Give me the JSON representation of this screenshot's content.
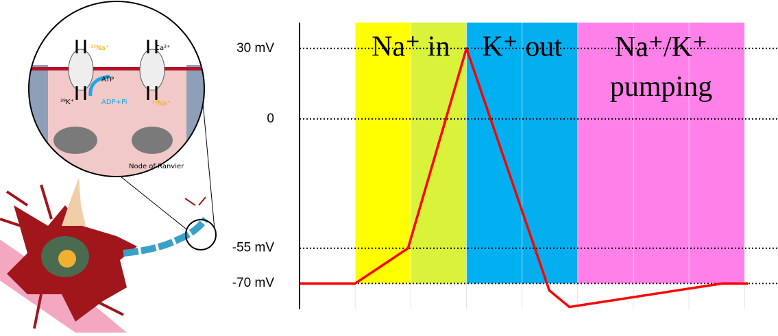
{
  "chart_data": {
    "type": "line",
    "x": [
      0,
      1,
      1.95,
      3,
      4.49,
      4.85,
      7.6,
      8.06
    ],
    "values": [
      -70,
      -70,
      -55,
      30,
      -73,
      -80,
      -70,
      -70
    ],
    "color": "#ff0000",
    "xlim": [
      0,
      8.6
    ],
    "ylim": [
      -81,
      41
    ],
    "xticks": [
      1,
      2,
      3,
      4,
      5,
      6,
      7,
      8
    ],
    "yticks": [
      {
        "value": 30,
        "label": "30 mV"
      },
      0,
      {
        "value": -55,
        "label": "-55 mV"
      },
      {
        "value": -70,
        "label": "-70 mV"
      }
    ],
    "grid": true,
    "fills": [
      {
        "from": 1,
        "to": 2,
        "color": "#ffff00"
      },
      {
        "from": 2,
        "to": 3,
        "color": "#d9f23a"
      },
      {
        "from": 3,
        "to": 4,
        "color": "#00b0f0"
      },
      {
        "from": 4,
        "to": 5,
        "color": "#05aeee"
      },
      {
        "from": 5,
        "to": 8,
        "color": "#ff80e8"
      }
    ],
    "phases": [
      {
        "label": "Na⁺ in",
        "from": 1,
        "to": 3
      },
      {
        "label": "K⁺ out",
        "from": 3,
        "to": 5
      },
      {
        "label": "Na⁺/K⁺ pumping",
        "from": 5,
        "to": 8
      }
    ]
  },
  "illustration": {
    "labels": [
      "²³Na⁺",
      "Ca²⁺",
      "ATP",
      "³⁹K⁺",
      "ADP+Pi",
      "²³Na⁺",
      "Node of Ranvier"
    ]
  }
}
